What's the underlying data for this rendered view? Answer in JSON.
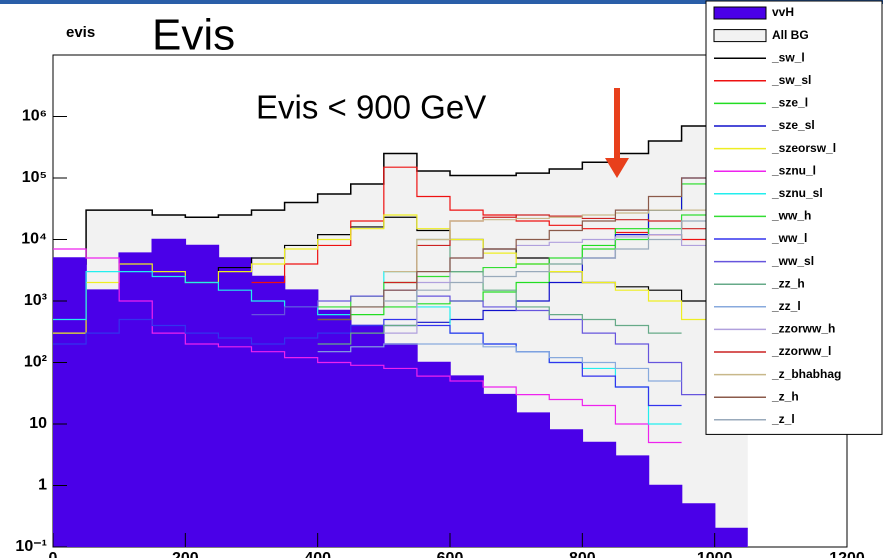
{
  "chart_data": {
    "type": "line",
    "title": "evis",
    "subtitle": "Evis",
    "annotation": "Evis < 900 GeV",
    "x": [
      0,
      50,
      100,
      150,
      200,
      250,
      300,
      350,
      400,
      450,
      500,
      550,
      600,
      650,
      700,
      750,
      800,
      850,
      900,
      950,
      1000
    ],
    "xlim": [
      0,
      1200
    ],
    "xticks": [
      0,
      200,
      400,
      600,
      800,
      1000,
      1200
    ],
    "ylim": [
      0.1,
      10000000
    ],
    "log_scale": true,
    "yticks": [
      {
        "value": 0.1,
        "label": "10⁻¹"
      },
      1,
      10,
      {
        "value": 100,
        "label": "10²"
      },
      {
        "value": 1000,
        "label": "10³"
      },
      {
        "value": 10000,
        "label": "10⁴"
      },
      {
        "value": 100000,
        "label": "10⁵"
      },
      {
        "value": 1000000,
        "label": "10⁶"
      }
    ],
    "series": [
      {
        "name": "vvH",
        "color": "#4a00e8",
        "fill": true,
        "values": [
          5000,
          1500,
          6000,
          10000,
          8000,
          5000,
          2500,
          1500,
          700,
          400,
          200,
          100,
          60,
          30,
          15,
          8,
          5,
          3,
          1,
          0.5,
          0.2
        ]
      },
      {
        "name": "All BG",
        "color": "#000000",
        "fill": true,
        "values": [
          4000,
          30000,
          30000,
          25000,
          23000,
          25000,
          30000,
          40000,
          55000,
          80000,
          250000,
          130000,
          110000,
          110000,
          120000,
          140000,
          180000,
          250000,
          400000,
          700000,
          2000000
        ]
      },
      {
        "name": "_sw_l",
        "color": "#000000",
        "values": [
          null,
          null,
          null,
          null,
          2000,
          3500,
          5000,
          8000,
          12000,
          16000,
          23000,
          14000,
          10000,
          7000,
          5000,
          3000,
          2000,
          1700,
          1500,
          1000,
          null
        ]
      },
      {
        "name": "_sw_sl",
        "color": "#ee1111",
        "values": [
          null,
          null,
          null,
          null,
          null,
          null,
          2000,
          4000,
          8000,
          20000,
          150000,
          50000,
          30000,
          25000,
          20000,
          17000,
          15000,
          13000,
          12000,
          10000,
          null
        ]
      },
      {
        "name": "_sze_l",
        "color": "#22dd22",
        "values": [
          null,
          null,
          null,
          null,
          null,
          null,
          null,
          null,
          500,
          600,
          800,
          900,
          1000,
          1400,
          2000,
          4000,
          8000,
          15000,
          30000,
          80000,
          1000000
        ]
      },
      {
        "name": "_sze_sl",
        "color": "#1111cc",
        "values": [
          null,
          null,
          null,
          null,
          null,
          null,
          null,
          null,
          null,
          null,
          400,
          450,
          500,
          700,
          1000,
          2000,
          5000,
          12000,
          30000,
          100000,
          800000
        ]
      },
      {
        "name": "_szeorsw_l",
        "color": "#eeee22",
        "values": [
          300,
          2000,
          4000,
          3000,
          2000,
          3000,
          4000,
          7000,
          10000,
          15000,
          25000,
          15000,
          10000,
          6000,
          4000,
          3000,
          2000,
          1500,
          1000,
          500,
          null
        ]
      },
      {
        "name": "_sznu_l",
        "color": "#ee22ee",
        "values": [
          7000,
          5000,
          1000,
          300,
          200,
          180,
          150,
          120,
          100,
          90,
          80,
          60,
          50,
          40,
          30,
          25,
          20,
          10,
          5,
          null,
          null
        ]
      },
      {
        "name": "_sznu_sl",
        "color": "#22eeee",
        "values": [
          500,
          3000,
          3000,
          2500,
          2000,
          1500,
          1000,
          800,
          600,
          800,
          3000,
          800,
          300,
          200,
          150,
          100,
          80,
          40,
          10,
          null,
          null
        ]
      },
      {
        "name": "_ww_h",
        "color": "#33dd33",
        "values": [
          null,
          null,
          null,
          null,
          null,
          null,
          null,
          null,
          800,
          1200,
          2000,
          2500,
          3000,
          3500,
          4000,
          5000,
          7000,
          10000,
          15000,
          25000,
          null
        ]
      },
      {
        "name": "_ww_l",
        "color": "#3333ee",
        "values": [
          200,
          300,
          500,
          400,
          300,
          250,
          200,
          250,
          300,
          400,
          500,
          400,
          300,
          200,
          150,
          100,
          60,
          40,
          20,
          null,
          null
        ]
      },
      {
        "name": "_ww_sl",
        "color": "#6655dd",
        "values": [
          null,
          null,
          null,
          null,
          null,
          null,
          600,
          800,
          1000,
          1200,
          1500,
          1200,
          1000,
          800,
          700,
          500,
          300,
          200,
          100,
          30,
          null
        ]
      },
      {
        "name": "_zz_h",
        "color": "#66aa88",
        "values": [
          null,
          null,
          null,
          null,
          null,
          null,
          null,
          null,
          200,
          300,
          400,
          10000,
          3000,
          1500,
          800,
          600,
          500,
          400,
          300,
          null,
          null
        ]
      },
      {
        "name": "_zz_l",
        "color": "#88aadd",
        "values": [
          null,
          null,
          null,
          null,
          null,
          null,
          null,
          null,
          150,
          180,
          200,
          200,
          200,
          180,
          150,
          120,
          100,
          80,
          50,
          null,
          null
        ]
      },
      {
        "name": "_zzorww_h",
        "color": "#b0a0dd",
        "values": [
          null,
          null,
          null,
          null,
          null,
          null,
          null,
          null,
          null,
          null,
          300,
          2000,
          5000,
          7000,
          8000,
          9000,
          10000,
          11000,
          12000,
          8000,
          null
        ]
      },
      {
        "name": "_zzorww_l",
        "color": "#cc2222",
        "values": [
          null,
          null,
          null,
          null,
          null,
          null,
          null,
          null,
          null,
          null,
          2000,
          8000,
          20000,
          23000,
          25000,
          24000,
          22000,
          21000,
          20000,
          15000,
          null
        ]
      },
      {
        "name": "_z_bhabhag",
        "color": "#c8b88a",
        "values": [
          null,
          null,
          null,
          null,
          null,
          null,
          null,
          null,
          null,
          null,
          3000,
          10000,
          20000,
          21000,
          22000,
          23000,
          25000,
          27000,
          30000,
          30000,
          null
        ]
      },
      {
        "name": "_z_h",
        "color": "#8b5a4a",
        "values": [
          null,
          null,
          null,
          null,
          null,
          null,
          null,
          null,
          500,
          800,
          1500,
          3000,
          5000,
          7000,
          10000,
          14000,
          20000,
          30000,
          50000,
          100000,
          null
        ]
      },
      {
        "name": "_z_l",
        "color": "#99aabb",
        "values": [
          null,
          null,
          null,
          null,
          null,
          null,
          null,
          null,
          null,
          null,
          1000,
          1500,
          2000,
          2500,
          3000,
          4000,
          5000,
          7000,
          10000,
          20000,
          null
        ]
      }
    ]
  }
}
